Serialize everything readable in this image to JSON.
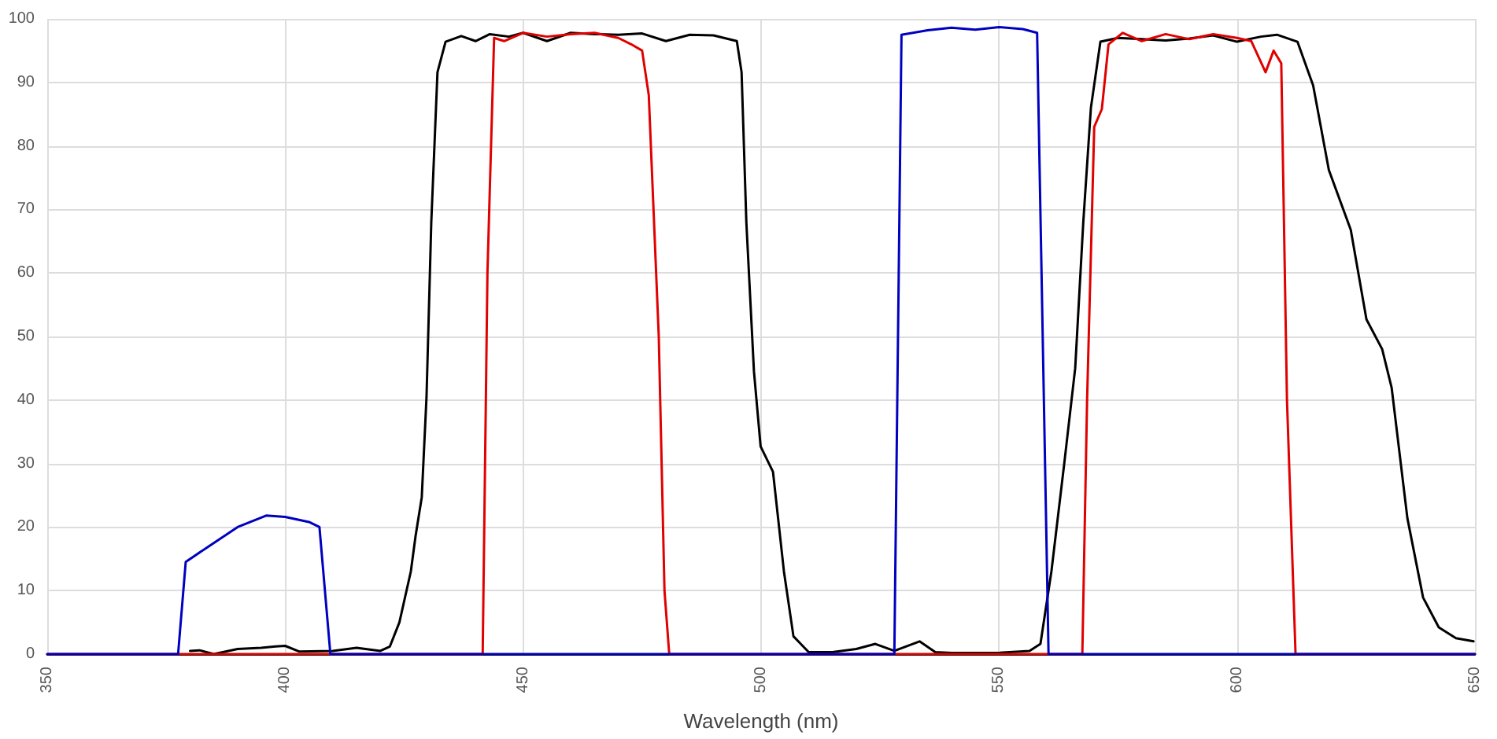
{
  "chart_data": {
    "type": "line",
    "xlabel": "Wavelength (nm)",
    "xlim": [
      350,
      650
    ],
    "xticks": [
      350,
      400,
      450,
      500,
      550,
      600,
      650
    ],
    "ylim": [
      0,
      100
    ],
    "yticks": [
      0,
      10,
      20,
      30,
      40,
      50,
      60,
      70,
      80,
      90,
      100
    ],
    "grid": true,
    "marker": "none",
    "line_style": "solid",
    "series": [
      {
        "color": "#000000",
        "x": [
          380,
          382,
          385,
          390,
          395,
          398,
          400,
          403,
          410,
          415,
          420,
          422,
          424,
          426.4,
          427.4,
          428.7,
          429.7,
          430.7,
          432,
          433.7,
          437,
          440,
          443,
          447,
          450,
          455,
          460,
          465,
          470,
          475,
          480,
          485,
          490,
          494.9,
          495.9,
          496.9,
          498.5,
          499.9,
          502.5,
          504.8,
          506.8,
          510,
          515,
          520,
          524,
          528,
          533.3,
          536.6,
          540,
          550,
          556.4,
          558.7,
          561,
          563.7,
          566,
          567.7,
          569.3,
          571.3,
          575,
          580,
          585,
          590,
          595,
          600,
          605,
          608.4,
          612.7,
          616,
          619.3,
          623.9,
          627.2,
          630.5,
          632.5,
          635.8,
          639.1,
          642.4,
          646,
          649.7
        ],
        "values": [
          0.5,
          0.6,
          0,
          0.8,
          1,
          1.2,
          1.3,
          0.4,
          0.5,
          1,
          0.5,
          1.2,
          5,
          13,
          18.6,
          24.7,
          40.5,
          68,
          91.6,
          96.4,
          97.3,
          96.5,
          97.6,
          97.2,
          97.8,
          96.5,
          97.8,
          97.6,
          97.5,
          97.7,
          96.5,
          97.5,
          97.4,
          96.5,
          91.6,
          68,
          44.5,
          32.7,
          28.7,
          13,
          2.8,
          0.3,
          0.3,
          0.8,
          1.6,
          0.5,
          2,
          0.3,
          0.2,
          0.2,
          0.5,
          1.6,
          13,
          30,
          45,
          68,
          86,
          96.4,
          97,
          96.8,
          96.6,
          96.9,
          97.4,
          96.4,
          97.2,
          97.5,
          96.4,
          89.5,
          76.2,
          66.8,
          52.7,
          48,
          41.9,
          21.4,
          8.9,
          4.2,
          2.5,
          2
        ]
      },
      {
        "color": "#e00000",
        "x": [
          350,
          441.5,
          442.5,
          443.9,
          446,
          450,
          455,
          460,
          465,
          470,
          472.7,
          475,
          476.4,
          478.5,
          479.7,
          480.7,
          567.5,
          568.5,
          570,
          571.6,
          573,
          576,
          580,
          585,
          590,
          595,
          600,
          603,
          606,
          607.7,
          609.3,
          610.5,
          612.3,
          650
        ],
        "values": [
          0,
          0,
          60,
          97,
          96.5,
          97.8,
          97.2,
          97.6,
          97.8,
          97,
          96,
          95,
          88,
          50,
          10,
          0,
          0,
          40,
          83,
          85.8,
          96,
          97.8,
          96.5,
          97.6,
          96.8,
          97.6,
          97,
          96.5,
          91.6,
          95,
          93,
          40,
          0,
          0
        ]
      },
      {
        "color": "#0000c0",
        "x": [
          350,
          377.5,
          379.1,
          384,
          390,
          396,
          400,
          405,
          407.2,
          409.5,
          528,
          529.5,
          535,
          540,
          545,
          550,
          555,
          558,
          560.4,
          650
        ],
        "values": [
          0,
          0,
          14.5,
          17,
          20,
          21.8,
          21.6,
          20.8,
          20,
          0,
          0,
          97.5,
          98.2,
          98.6,
          98.3,
          98.7,
          98.4,
          97.8,
          0,
          0
        ]
      }
    ]
  }
}
